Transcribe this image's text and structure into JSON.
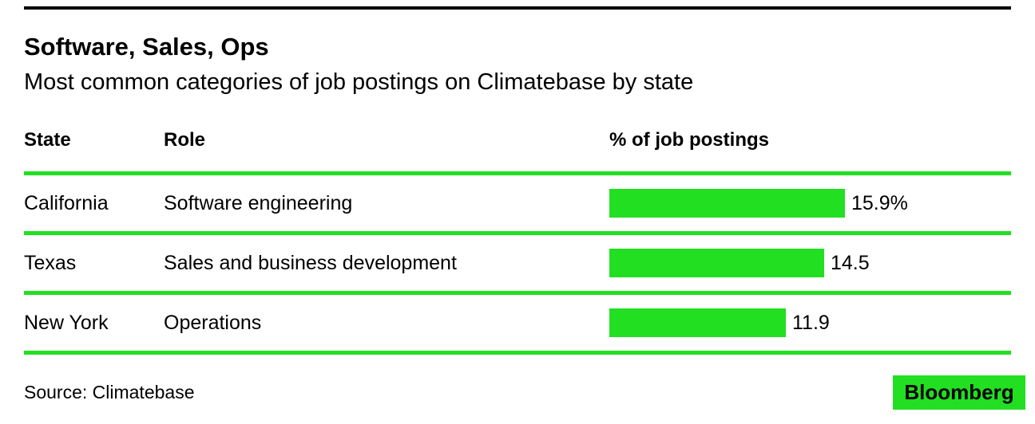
{
  "header": {
    "title": "Software, Sales, Ops",
    "subtitle": "Most common categories of job postings on Climatebase by state"
  },
  "table": {
    "columns": {
      "state": "State",
      "role": "Role",
      "value": "% of job postings"
    },
    "rows": [
      {
        "state": "California",
        "role": "Software engineering",
        "value": 15.9,
        "value_label": "15.9%"
      },
      {
        "state": "Texas",
        "role": "Sales and business development",
        "value": 14.5,
        "value_label": "14.5"
      },
      {
        "state": "New York",
        "role": "Operations",
        "value": 11.9,
        "value_label": "11.9"
      }
    ]
  },
  "footer": {
    "source": "Source: Climatebase",
    "brand": "Bloomberg"
  },
  "colors": {
    "accent_green": "#22DF22",
    "text": "#000000",
    "background": "#FFFFFF"
  },
  "chart_data": {
    "type": "bar",
    "orientation": "horizontal",
    "title": "Software, Sales, Ops",
    "subtitle": "Most common categories of job postings on Climatebase by state",
    "xlabel": "% of job postings",
    "categories": [
      "California — Software engineering",
      "Texas — Sales and business development",
      "New York — Operations"
    ],
    "values": [
      15.9,
      14.5,
      11.9
    ],
    "data_labels": [
      "15.9%",
      "14.5",
      "11.9"
    ],
    "xlim": [
      0,
      16
    ],
    "grid": false,
    "legend": false,
    "source": "Source: Climatebase",
    "bar_color": "#22DF22"
  }
}
